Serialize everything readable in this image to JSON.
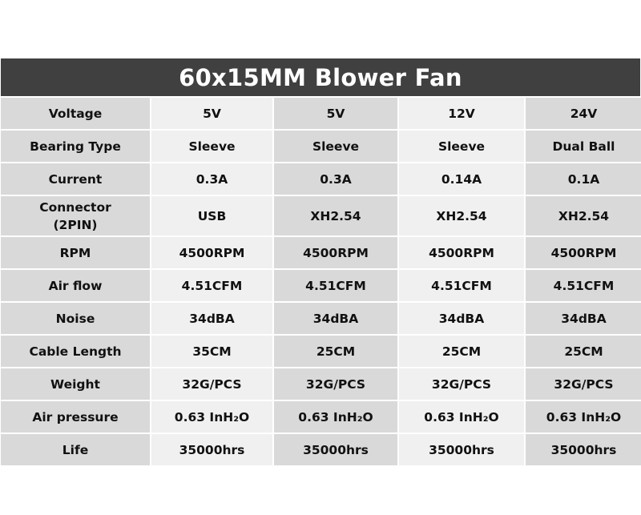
{
  "title": "60x15MM Blower Fan",
  "rows": [
    {
      "label": "Voltage",
      "values": [
        "5V",
        "5V",
        "12V",
        "24V"
      ]
    },
    {
      "label": "Bearing Type",
      "values": [
        "Sleeve",
        "Sleeve",
        "Sleeve",
        "Dual Ball"
      ]
    },
    {
      "label": "Current",
      "values": [
        "0.3A",
        "0.3A",
        "0.14A",
        "0.1A"
      ]
    },
    {
      "label": "Connector\n(2PIN)",
      "values": [
        "USB",
        "XH2.54",
        "XH2.54",
        "XH2.54"
      ]
    },
    {
      "label": "RPM",
      "values": [
        "4500RPM",
        "4500RPM",
        "4500RPM",
        "4500RPM"
      ]
    },
    {
      "label": "Air flow",
      "values": [
        "4.51CFM",
        "4.51CFM",
        "4.51CFM",
        "4.51CFM"
      ]
    },
    {
      "label": "Noise",
      "values": [
        "34dBA",
        "34dBA",
        "34dBA",
        "34dBA"
      ]
    },
    {
      "label": "Cable Length",
      "values": [
        "35CM",
        "25CM",
        "25CM",
        "25CM"
      ]
    },
    {
      "label": "Weight",
      "values": [
        "32G/PCS",
        "32G/PCS",
        "32G/PCS",
        "32G/PCS"
      ]
    },
    {
      "label": "Air pressure",
      "values": [
        "0.63 InH₂O",
        "0.63 InH₂O",
        "0.63 InH₂O",
        "0.63 InH₂O"
      ]
    },
    {
      "label": "Life",
      "values": [
        "35000hrs",
        "35000hrs",
        "35000hrs",
        "35000hrs"
      ]
    }
  ],
  "colors": {
    "header_bg": "#404040",
    "header_text": "#ffffff",
    "cell_dark": "#d9d9d9",
    "cell_light": "#f0f0f0"
  }
}
